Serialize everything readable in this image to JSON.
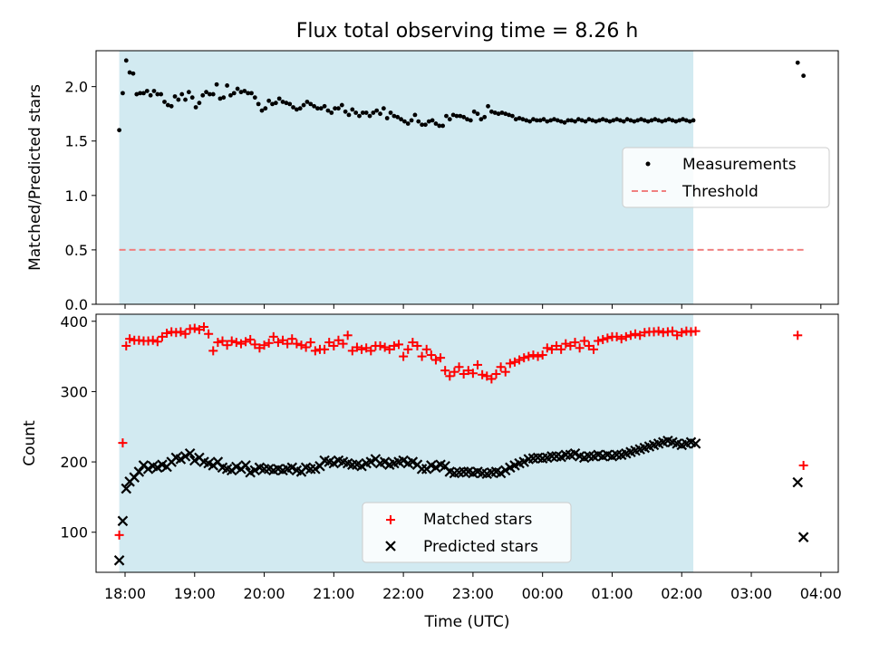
{
  "chart_data": [
    {
      "type": "scatter",
      "title": "Flux total observing time = 8.26 h",
      "xlabel": "",
      "ylabel": "Matched/Predicted stars",
      "xlim": [
        "17:35",
        "04:15"
      ],
      "ylim": [
        0,
        2.33
      ],
      "y_ticks": [
        0.0,
        0.5,
        1.0,
        1.5,
        2.0
      ],
      "y_tick_labels": [
        "0.0",
        "0.5",
        "1.0",
        "1.5",
        "2.0"
      ],
      "shaded_interval": [
        "17:55",
        "02:10"
      ],
      "legend": {
        "position": "center-right"
      },
      "series": [
        {
          "name": "Measurements",
          "marker": "dot",
          "color": "#000000",
          "x": [
            "17:55",
            "17:58",
            "18:01",
            "18:04",
            "18:07",
            "18:10",
            "18:13",
            "18:16",
            "18:19",
            "18:22",
            "18:25",
            "18:28",
            "18:31",
            "18:34",
            "18:37",
            "18:40",
            "18:43",
            "18:46",
            "18:49",
            "18:52",
            "18:55",
            "18:58",
            "19:01",
            "19:04",
            "19:07",
            "19:10",
            "19:13",
            "19:16",
            "19:19",
            "19:22",
            "19:25",
            "19:28",
            "19:31",
            "19:34",
            "19:37",
            "19:40",
            "19:43",
            "19:46",
            "19:49",
            "19:52",
            "19:55",
            "19:58",
            "20:01",
            "20:04",
            "20:07",
            "20:10",
            "20:13",
            "20:16",
            "20:19",
            "20:22",
            "20:25",
            "20:28",
            "20:31",
            "20:34",
            "20:37",
            "20:40",
            "20:43",
            "20:46",
            "20:49",
            "20:52",
            "20:55",
            "20:58",
            "21:01",
            "21:04",
            "21:07",
            "21:10",
            "21:13",
            "21:16",
            "21:19",
            "21:22",
            "21:25",
            "21:28",
            "21:31",
            "21:34",
            "21:37",
            "21:40",
            "21:43",
            "21:46",
            "21:49",
            "21:52",
            "21:55",
            "21:58",
            "22:01",
            "22:04",
            "22:07",
            "22:10",
            "22:13",
            "22:16",
            "22:19",
            "22:22",
            "22:25",
            "22:28",
            "22:31",
            "22:34",
            "22:37",
            "22:40",
            "22:43",
            "22:46",
            "22:49",
            "22:52",
            "22:55",
            "22:58",
            "23:01",
            "23:04",
            "23:07",
            "23:10",
            "23:13",
            "23:16",
            "23:19",
            "23:22",
            "23:25",
            "23:28",
            "23:31",
            "23:34",
            "23:37",
            "23:40",
            "23:43",
            "23:46",
            "23:49",
            "23:52",
            "23:55",
            "23:58",
            "00:01",
            "00:04",
            "00:07",
            "00:10",
            "00:13",
            "00:16",
            "00:19",
            "00:22",
            "00:25",
            "00:28",
            "00:31",
            "00:34",
            "00:37",
            "00:40",
            "00:43",
            "00:46",
            "00:49",
            "00:52",
            "00:55",
            "00:58",
            "01:01",
            "01:04",
            "01:07",
            "01:10",
            "01:13",
            "01:16",
            "01:19",
            "01:22",
            "01:25",
            "01:28",
            "01:31",
            "01:34",
            "01:37",
            "01:40",
            "01:43",
            "01:46",
            "01:49",
            "01:52",
            "01:55",
            "01:58",
            "02:01",
            "02:04",
            "02:07",
            "02:10",
            "03:40",
            "03:45"
          ],
          "y": [
            1.6,
            1.94,
            2.24,
            2.13,
            2.12,
            1.93,
            1.94,
            1.94,
            1.96,
            1.92,
            1.96,
            1.93,
            1.93,
            1.86,
            1.83,
            1.82,
            1.91,
            1.88,
            1.93,
            1.88,
            1.95,
            1.9,
            1.81,
            1.85,
            1.92,
            1.95,
            1.93,
            1.93,
            2.02,
            1.89,
            1.9,
            2.01,
            1.92,
            1.94,
            1.98,
            1.95,
            1.96,
            1.94,
            1.94,
            1.9,
            1.84,
            1.78,
            1.8,
            1.87,
            1.84,
            1.85,
            1.89,
            1.86,
            1.85,
            1.84,
            1.81,
            1.79,
            1.8,
            1.83,
            1.86,
            1.84,
            1.82,
            1.8,
            1.8,
            1.82,
            1.78,
            1.76,
            1.8,
            1.8,
            1.83,
            1.77,
            1.74,
            1.79,
            1.76,
            1.73,
            1.76,
            1.76,
            1.73,
            1.76,
            1.78,
            1.75,
            1.8,
            1.71,
            1.76,
            1.73,
            1.72,
            1.7,
            1.68,
            1.66,
            1.69,
            1.74,
            1.68,
            1.65,
            1.65,
            1.68,
            1.69,
            1.66,
            1.64,
            1.64,
            1.73,
            1.7,
            1.74,
            1.73,
            1.73,
            1.72,
            1.7,
            1.69,
            1.77,
            1.75,
            1.7,
            1.72,
            1.82,
            1.77,
            1.76,
            1.75,
            1.76,
            1.75,
            1.74,
            1.73,
            1.7,
            1.71,
            1.7,
            1.69,
            1.68,
            1.7,
            1.69,
            1.69,
            1.7,
            1.68,
            1.69,
            1.7,
            1.69,
            1.68,
            1.67,
            1.69,
            1.69,
            1.68,
            1.7,
            1.69,
            1.68,
            1.7,
            1.69,
            1.68,
            1.69,
            1.7,
            1.69,
            1.68,
            1.69,
            1.7,
            1.69,
            1.68,
            1.7,
            1.69,
            1.68,
            1.69,
            1.7,
            1.69,
            1.68,
            1.69,
            1.7,
            1.69,
            1.68,
            1.69,
            1.7,
            1.69,
            1.68,
            1.69,
            1.7,
            1.69,
            1.68,
            1.69,
            2.22,
            2.1
          ]
        },
        {
          "name": "Threshold",
          "type": "line",
          "style": "dashed",
          "color": "#f08080",
          "x": [
            "17:55",
            "03:45"
          ],
          "y": [
            0.5,
            0.5
          ]
        }
      ]
    },
    {
      "type": "scatter",
      "title": "",
      "xlabel": "Time (UTC)",
      "ylabel": "Count",
      "xlim": [
        "17:35",
        "04:15"
      ],
      "x_ticks": [
        "18:00",
        "19:00",
        "20:00",
        "21:00",
        "22:00",
        "23:00",
        "00:00",
        "01:00",
        "02:00",
        "03:00",
        "04:00"
      ],
      "ylim": [
        43,
        410
      ],
      "y_ticks": [
        100,
        200,
        300,
        400
      ],
      "y_tick_labels": [
        "100",
        "200",
        "300",
        "400"
      ],
      "shaded_interval": [
        "17:55",
        "02:10"
      ],
      "legend": {
        "position": "lower-center"
      },
      "series": [
        {
          "name": "Matched stars",
          "marker": "plus",
          "color": "#ff0000",
          "x": [
            "17:55",
            "17:58",
            "18:01",
            "18:04",
            "18:08",
            "18:12",
            "18:16",
            "18:20",
            "18:24",
            "18:28",
            "18:32",
            "18:36",
            "18:40",
            "18:44",
            "18:48",
            "18:52",
            "18:56",
            "19:00",
            "19:04",
            "19:08",
            "19:12",
            "19:16",
            "19:20",
            "19:24",
            "19:28",
            "19:32",
            "19:36",
            "19:40",
            "19:44",
            "19:48",
            "19:52",
            "19:56",
            "20:00",
            "20:04",
            "20:08",
            "20:12",
            "20:16",
            "20:20",
            "20:24",
            "20:28",
            "20:32",
            "20:36",
            "20:40",
            "20:44",
            "20:48",
            "20:52",
            "20:56",
            "21:00",
            "21:04",
            "21:08",
            "21:12",
            "21:16",
            "21:20",
            "21:24",
            "21:28",
            "21:32",
            "21:36",
            "21:40",
            "21:44",
            "21:48",
            "21:52",
            "21:56",
            "22:00",
            "22:04",
            "22:08",
            "22:12",
            "22:16",
            "22:20",
            "22:24",
            "22:28",
            "22:32",
            "22:36",
            "22:40",
            "22:44",
            "22:48",
            "22:52",
            "22:56",
            "23:00",
            "23:04",
            "23:08",
            "23:12",
            "23:16",
            "23:20",
            "23:24",
            "23:28",
            "23:32",
            "23:36",
            "23:40",
            "23:44",
            "23:48",
            "23:52",
            "23:56",
            "00:00",
            "00:04",
            "00:08",
            "00:12",
            "00:16",
            "00:20",
            "00:24",
            "00:28",
            "00:32",
            "00:36",
            "00:40",
            "00:44",
            "00:48",
            "00:52",
            "00:56",
            "01:00",
            "01:04",
            "01:08",
            "01:12",
            "01:16",
            "01:20",
            "01:24",
            "01:28",
            "01:32",
            "01:36",
            "01:40",
            "01:44",
            "01:48",
            "01:52",
            "01:56",
            "02:00",
            "02:04",
            "02:08",
            "02:12",
            "03:40",
            "03:45"
          ],
          "y": [
            96,
            227,
            365,
            375,
            373,
            373,
            372,
            372,
            373,
            371,
            378,
            383,
            385,
            384,
            385,
            382,
            389,
            390,
            388,
            392,
            382,
            358,
            370,
            372,
            366,
            372,
            370,
            368,
            371,
            374,
            367,
            362,
            366,
            369,
            378,
            370,
            373,
            368,
            375,
            368,
            366,
            363,
            370,
            358,
            360,
            360,
            370,
            365,
            373,
            368,
            380,
            358,
            363,
            360,
            362,
            358,
            365,
            365,
            363,
            360,
            365,
            367,
            350,
            360,
            370,
            365,
            350,
            360,
            352,
            345,
            348,
            330,
            322,
            328,
            335,
            325,
            330,
            326,
            338,
            324,
            322,
            318,
            325,
            335,
            328,
            340,
            342,
            345,
            348,
            350,
            352,
            350,
            352,
            362,
            360,
            365,
            360,
            368,
            365,
            370,
            362,
            372,
            365,
            360,
            372,
            374,
            376,
            378,
            378,
            375,
            378,
            380,
            382,
            380,
            384,
            385,
            385,
            386,
            384,
            385,
            386,
            380,
            384,
            386,
            385,
            386,
            380,
            195
          ],
          "y_note": ""
        },
        {
          "name": "Predicted stars",
          "marker": "x",
          "color": "#000000",
          "x": [
            "17:55",
            "17:58",
            "18:01",
            "18:04",
            "18:08",
            "18:12",
            "18:16",
            "18:20",
            "18:24",
            "18:28",
            "18:32",
            "18:36",
            "18:40",
            "18:44",
            "18:48",
            "18:52",
            "18:56",
            "19:00",
            "19:04",
            "19:08",
            "19:12",
            "19:16",
            "19:20",
            "19:24",
            "19:28",
            "19:32",
            "19:36",
            "19:40",
            "19:44",
            "19:48",
            "19:52",
            "19:56",
            "20:00",
            "20:04",
            "20:08",
            "20:12",
            "20:16",
            "20:20",
            "20:24",
            "20:28",
            "20:32",
            "20:36",
            "20:40",
            "20:44",
            "20:48",
            "20:52",
            "20:56",
            "21:00",
            "21:04",
            "21:08",
            "21:12",
            "21:16",
            "21:20",
            "21:24",
            "21:28",
            "21:32",
            "21:36",
            "21:40",
            "21:44",
            "21:48",
            "21:52",
            "21:56",
            "22:00",
            "22:04",
            "22:08",
            "22:12",
            "22:16",
            "22:20",
            "22:24",
            "22:28",
            "22:32",
            "22:36",
            "22:40",
            "22:44",
            "22:48",
            "22:52",
            "22:56",
            "23:00",
            "23:04",
            "23:08",
            "23:12",
            "23:16",
            "23:20",
            "23:24",
            "23:28",
            "23:32",
            "23:36",
            "23:40",
            "23:44",
            "23:48",
            "23:52",
            "23:56",
            "00:00",
            "00:04",
            "00:08",
            "00:12",
            "00:16",
            "00:20",
            "00:24",
            "00:28",
            "00:32",
            "00:36",
            "00:40",
            "00:44",
            "00:48",
            "00:52",
            "00:56",
            "01:00",
            "01:04",
            "01:08",
            "01:12",
            "01:16",
            "01:20",
            "01:24",
            "01:28",
            "01:32",
            "01:36",
            "01:40",
            "01:44",
            "01:48",
            "01:52",
            "01:56",
            "02:00",
            "02:04",
            "02:08",
            "02:12",
            "03:40",
            "03:45"
          ],
          "y": [
            60,
            116,
            162,
            172,
            178,
            186,
            195,
            190,
            194,
            192,
            196,
            193,
            200,
            206,
            204,
            208,
            212,
            202,
            206,
            200,
            198,
            195,
            200,
            192,
            190,
            188,
            193,
            190,
            195,
            185,
            188,
            192,
            190,
            190,
            188,
            190,
            188,
            190,
            192,
            188,
            186,
            192,
            190,
            190,
            194,
            202,
            200,
            198,
            202,
            200,
            198,
            196,
            196,
            194,
            198,
            200,
            204,
            198,
            200,
            196,
            198,
            200,
            202,
            198,
            200,
            196,
            190,
            190,
            195,
            192,
            196,
            194,
            186,
            184,
            185,
            186,
            186,
            184,
            186,
            184,
            183,
            185,
            186,
            184,
            188,
            192,
            195,
            198,
            200,
            204,
            205,
            206,
            205,
            206,
            208,
            208,
            207,
            210,
            210,
            212,
            208,
            206,
            208,
            208,
            210,
            208,
            210,
            208,
            210,
            210,
            212,
            214,
            216,
            218,
            220,
            222,
            224,
            226,
            228,
            230,
            228,
            226,
            224,
            226,
            228,
            226,
            171,
            93
          ]
        }
      ]
    }
  ]
}
